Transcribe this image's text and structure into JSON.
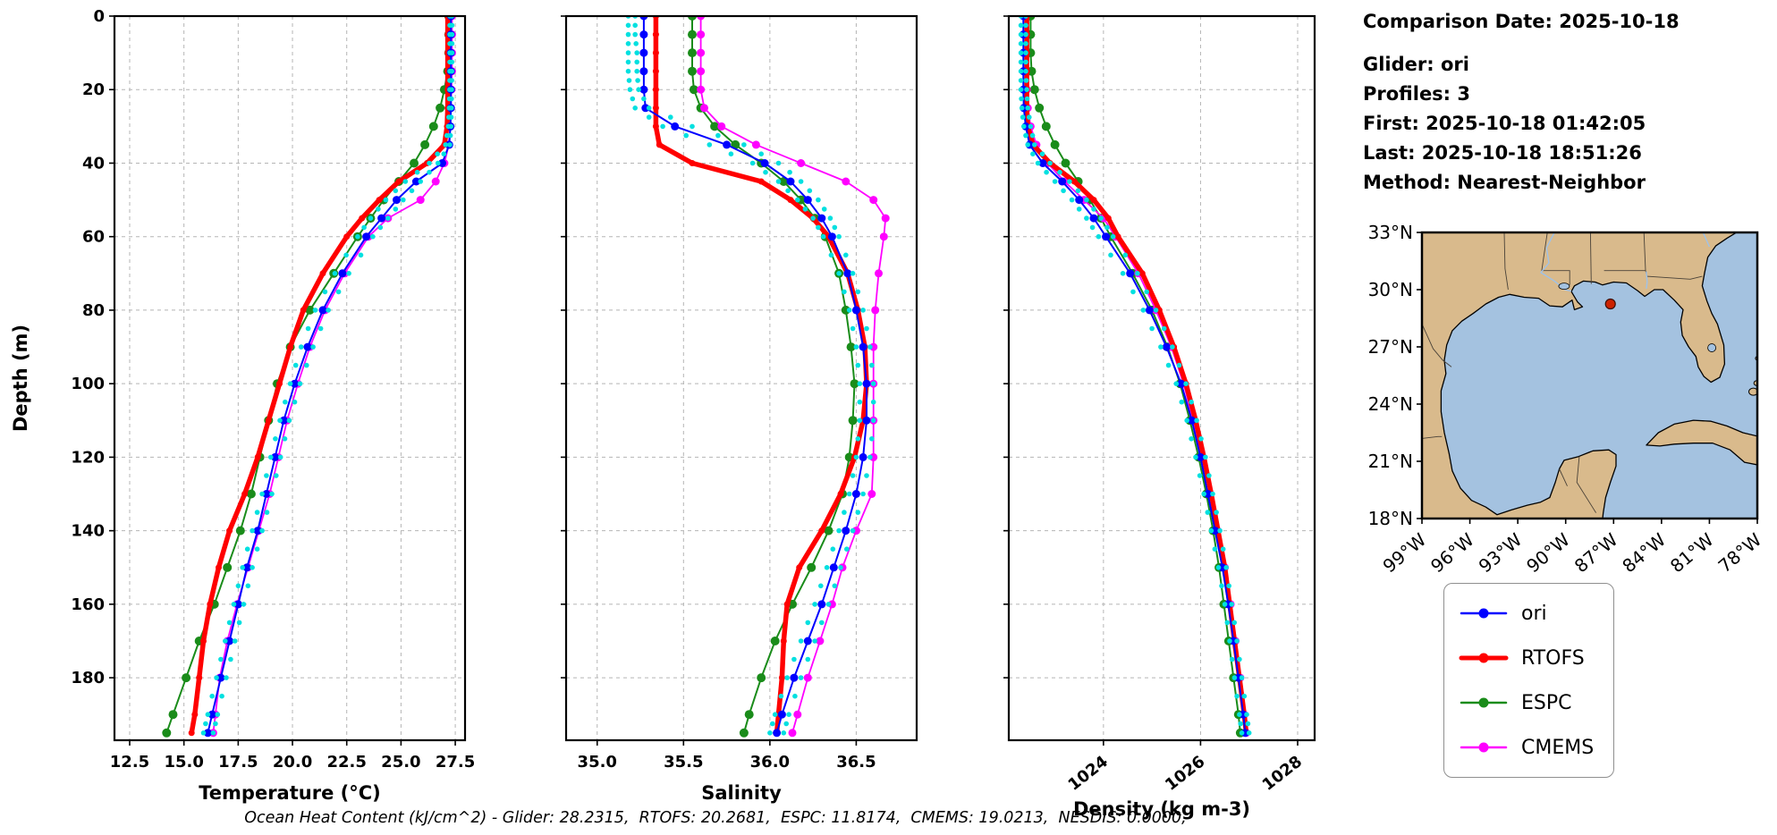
{
  "info_panel": {
    "comparison_date": "Comparison Date: 2025-10-18",
    "glider": "Glider: ori",
    "profiles": "Profiles: 3",
    "first": "First: 2025-10-18 01:42:05",
    "last": "Last: 2025-10-18 18:51:26",
    "method": "Method: Nearest-Neighbor"
  },
  "footer_note": "Ocean Heat Content (kJ/cm^2) - Glider: 28.2315,  RTOFS: 20.2681,  ESPC: 11.8174,  CMEMS: 19.0213,  NESDIS: 0.0000,",
  "legend": {
    "entries": [
      {
        "label": "ori",
        "color": "#0000ff",
        "lw": 2.5
      },
      {
        "label": "RTOFS",
        "color": "#ff0000",
        "lw": 5
      },
      {
        "label": "ESPC",
        "color": "#1a8c1a",
        "lw": 2.5
      },
      {
        "label": "CMEMS",
        "color": "#ff00ff",
        "lw": 2.5
      }
    ]
  },
  "depths": [
    0,
    5,
    10,
    15,
    20,
    25,
    30,
    35,
    40,
    45,
    50,
    55,
    60,
    70,
    80,
    90,
    100,
    110,
    120,
    130,
    140,
    150,
    160,
    170,
    180,
    190,
    195
  ],
  "chart_data": [
    {
      "type": "line",
      "xlabel": "Temperature (°C)",
      "ylabel": "Depth (m)",
      "xlim": [
        11.8,
        27.95
      ],
      "xticks": [
        12.5,
        15.0,
        17.5,
        20.0,
        22.5,
        25.0,
        27.5
      ],
      "xtick_labels": [
        "12.5",
        "15.0",
        "17.5",
        "20.0",
        "22.5",
        "25.0",
        "27.5"
      ],
      "rotate_xtick_labels": false,
      "ylim": [
        0,
        197
      ],
      "yticks": [
        0,
        20,
        40,
        60,
        80,
        100,
        120,
        140,
        160,
        180
      ],
      "grid": true,
      "series": [
        {
          "name": "ESPC",
          "color": "#1a8c1a",
          "lw": 2,
          "marker_r": 5,
          "style": "line-marker",
          "values": [
            27.2,
            27.2,
            27.2,
            27.15,
            27.0,
            26.8,
            26.5,
            26.1,
            25.6,
            24.9,
            24.2,
            23.6,
            23.0,
            21.9,
            20.8,
            19.9,
            19.3,
            18.9,
            18.5,
            18.1,
            17.6,
            17.0,
            16.4,
            15.7,
            15.1,
            14.5,
            14.2
          ]
        },
        {
          "name": "CMEMS",
          "color": "#ff00ff",
          "lw": 1.8,
          "marker_r": 4.5,
          "style": "line-marker",
          "values": [
            27.35,
            27.35,
            27.35,
            27.35,
            27.32,
            27.3,
            27.26,
            27.2,
            27.0,
            26.6,
            25.9,
            24.4,
            23.5,
            22.4,
            21.5,
            20.8,
            20.25,
            19.75,
            19.35,
            18.95,
            18.45,
            17.95,
            17.45,
            17.0,
            16.65,
            16.45,
            16.35
          ]
        },
        {
          "name": "RTOFS",
          "color": "#ff0000",
          "lw": 5.5,
          "marker_r": 3.5,
          "style": "line-marker",
          "values": [
            27.15,
            27.15,
            27.15,
            27.15,
            27.15,
            27.15,
            27.12,
            27.0,
            26.2,
            24.9,
            24.0,
            23.2,
            22.5,
            21.4,
            20.5,
            19.9,
            19.4,
            18.9,
            18.4,
            17.8,
            17.1,
            16.6,
            16.2,
            15.9,
            15.7,
            15.5,
            15.35
          ]
        },
        {
          "name": "ori",
          "color": "#0000ff",
          "lw": 2,
          "marker_r": 4.5,
          "style": "line-marker",
          "values": [
            27.3,
            27.3,
            27.3,
            27.3,
            27.3,
            27.3,
            27.28,
            27.22,
            26.9,
            25.7,
            24.8,
            24.1,
            23.4,
            22.3,
            21.4,
            20.7,
            20.1,
            19.6,
            19.2,
            18.8,
            18.4,
            17.9,
            17.5,
            17.1,
            16.7,
            16.3,
            16.1
          ]
        },
        {
          "name": "glider-obs-1",
          "color": "#00e0e0",
          "lw": 0,
          "marker_r": 2.8,
          "style": "scatter",
          "values": [
            27.25,
            27.25,
            27.25,
            27.25,
            27.24,
            27.22,
            27.18,
            27.05,
            26.3,
            25.2,
            24.3,
            23.6,
            23.0,
            21.95,
            21.05,
            20.4,
            19.9,
            19.42,
            19.0,
            18.6,
            18.15,
            17.7,
            17.3,
            16.9,
            16.5,
            16.1,
            15.9
          ]
        },
        {
          "name": "glider-obs-2",
          "color": "#00e0e0",
          "lw": 0,
          "marker_r": 2.8,
          "style": "scatter",
          "values": [
            27.35,
            27.35,
            27.35,
            27.34,
            27.33,
            27.32,
            27.3,
            27.25,
            26.7,
            25.9,
            25.1,
            24.4,
            23.7,
            22.6,
            21.65,
            20.95,
            20.35,
            19.85,
            19.45,
            19.05,
            18.6,
            18.15,
            17.75,
            17.35,
            16.95,
            16.55,
            16.35
          ]
        }
      ]
    },
    {
      "type": "line",
      "xlabel": "Salinity",
      "ylabel": "Depth (m)",
      "xlim": [
        34.82,
        36.85
      ],
      "xticks": [
        35.0,
        35.5,
        36.0,
        36.5
      ],
      "xtick_labels": [
        "35.0",
        "35.5",
        "36.0",
        "36.5"
      ],
      "rotate_xtick_labels": false,
      "ylim": [
        0,
        197
      ],
      "yticks": [
        0,
        20,
        40,
        60,
        80,
        100,
        120,
        140,
        160,
        180
      ],
      "grid": true,
      "series": [
        {
          "name": "ESPC",
          "color": "#1a8c1a",
          "lw": 2,
          "marker_r": 5,
          "style": "line-marker",
          "values": [
            35.55,
            35.55,
            35.55,
            35.55,
            35.56,
            35.6,
            35.68,
            35.8,
            35.95,
            36.08,
            36.18,
            36.26,
            36.32,
            36.4,
            36.44,
            36.47,
            36.49,
            36.48,
            36.46,
            36.42,
            36.34,
            36.24,
            36.13,
            36.03,
            35.95,
            35.88,
            35.85
          ]
        },
        {
          "name": "CMEMS",
          "color": "#ff00ff",
          "lw": 1.8,
          "marker_r": 4.5,
          "style": "line-marker",
          "values": [
            35.6,
            35.6,
            35.6,
            35.6,
            35.6,
            35.62,
            35.72,
            35.92,
            36.18,
            36.44,
            36.6,
            36.67,
            36.66,
            36.63,
            36.61,
            36.6,
            36.6,
            36.6,
            36.6,
            36.59,
            36.5,
            36.42,
            36.36,
            36.29,
            36.22,
            36.16,
            36.13
          ]
        },
        {
          "name": "RTOFS",
          "color": "#ff0000",
          "lw": 5.5,
          "marker_r": 3.5,
          "style": "line-marker",
          "values": [
            35.34,
            35.34,
            35.34,
            35.34,
            35.34,
            35.34,
            35.34,
            35.36,
            35.55,
            35.95,
            36.12,
            36.25,
            36.34,
            36.45,
            36.51,
            36.55,
            36.56,
            36.54,
            36.49,
            36.41,
            36.3,
            36.17,
            36.1,
            36.08,
            36.07,
            36.05,
            36.04
          ]
        },
        {
          "name": "ori",
          "color": "#0000ff",
          "lw": 2,
          "marker_r": 4.5,
          "style": "line-marker",
          "values": [
            35.27,
            35.27,
            35.27,
            35.27,
            35.27,
            35.28,
            35.45,
            35.75,
            35.97,
            36.12,
            36.22,
            36.3,
            36.36,
            36.45,
            36.5,
            36.54,
            36.56,
            36.56,
            36.54,
            36.5,
            36.44,
            36.37,
            36.3,
            36.22,
            36.14,
            36.07,
            36.04
          ]
        },
        {
          "name": "glider-obs-1",
          "color": "#00e0e0",
          "lw": 0,
          "marker_r": 2.8,
          "style": "scatter",
          "values": [
            35.18,
            35.18,
            35.18,
            35.18,
            35.19,
            35.22,
            35.38,
            35.65,
            35.9,
            36.05,
            36.16,
            36.25,
            36.31,
            36.4,
            36.46,
            36.5,
            36.52,
            36.52,
            36.5,
            36.46,
            36.4,
            36.33,
            36.26,
            36.18,
            36.1,
            36.03,
            36.0
          ]
        },
        {
          "name": "glider-obs-2",
          "color": "#00e0e0",
          "lw": 0,
          "marker_r": 2.8,
          "style": "scatter",
          "values": [
            35.22,
            35.22,
            35.23,
            35.23,
            35.24,
            35.3,
            35.55,
            35.85,
            36.05,
            36.18,
            36.28,
            36.35,
            36.4,
            36.48,
            36.54,
            36.58,
            36.6,
            36.6,
            36.58,
            36.54,
            36.48,
            36.41,
            36.34,
            36.26,
            36.18,
            36.11,
            36.08
          ]
        }
      ]
    },
    {
      "type": "line",
      "xlabel": "Density (kg m-3)",
      "ylabel": "Depth (m)",
      "xlim": [
        1022.05,
        1028.35
      ],
      "xticks": [
        1024,
        1026,
        1028
      ],
      "xtick_labels": [
        "1024",
        "1026",
        "1028"
      ],
      "rotate_xtick_labels": true,
      "ylim": [
        0,
        197
      ],
      "yticks": [
        0,
        20,
        40,
        60,
        80,
        100,
        120,
        140,
        160,
        180
      ],
      "grid": true,
      "series": [
        {
          "name": "ESPC",
          "color": "#1a8c1a",
          "lw": 2,
          "marker_r": 5,
          "style": "line-marker",
          "values": [
            1022.5,
            1022.5,
            1022.5,
            1022.52,
            1022.58,
            1022.68,
            1022.82,
            1023.0,
            1023.22,
            1023.48,
            1023.72,
            1023.95,
            1024.15,
            1024.6,
            1025.0,
            1025.32,
            1025.58,
            1025.78,
            1025.96,
            1026.12,
            1026.26,
            1026.38,
            1026.48,
            1026.58,
            1026.68,
            1026.78,
            1026.82
          ]
        },
        {
          "name": "CMEMS",
          "color": "#ff00ff",
          "lw": 1.8,
          "marker_r": 4.5,
          "style": "line-marker",
          "values": [
            1022.4,
            1022.4,
            1022.4,
            1022.4,
            1022.42,
            1022.44,
            1022.5,
            1022.62,
            1022.85,
            1023.2,
            1023.6,
            1024.0,
            1024.25,
            1024.72,
            1025.08,
            1025.4,
            1025.65,
            1025.85,
            1026.03,
            1026.2,
            1026.35,
            1026.5,
            1026.62,
            1026.72,
            1026.82,
            1026.9,
            1026.94
          ]
        },
        {
          "name": "RTOFS",
          "color": "#ff0000",
          "lw": 5.5,
          "marker_r": 3.5,
          "style": "line-marker",
          "values": [
            1022.42,
            1022.42,
            1022.42,
            1022.42,
            1022.42,
            1022.42,
            1022.44,
            1022.55,
            1022.9,
            1023.4,
            1023.8,
            1024.1,
            1024.3,
            1024.8,
            1025.15,
            1025.45,
            1025.7,
            1025.9,
            1026.07,
            1026.22,
            1026.36,
            1026.5,
            1026.6,
            1026.7,
            1026.8,
            1026.9,
            1026.94
          ]
        },
        {
          "name": "ori",
          "color": "#0000ff",
          "lw": 2,
          "marker_r": 4.5,
          "style": "line-marker",
          "values": [
            1022.35,
            1022.35,
            1022.35,
            1022.35,
            1022.35,
            1022.36,
            1022.4,
            1022.48,
            1022.75,
            1023.15,
            1023.5,
            1023.8,
            1024.05,
            1024.55,
            1024.95,
            1025.3,
            1025.6,
            1025.82,
            1026.0,
            1026.15,
            1026.3,
            1026.45,
            1026.57,
            1026.68,
            1026.78,
            1026.88,
            1026.92
          ]
        },
        {
          "name": "glider-obs-1",
          "color": "#00e0e0",
          "lw": 0,
          "marker_r": 2.8,
          "style": "scatter",
          "values": [
            1022.3,
            1022.3,
            1022.3,
            1022.3,
            1022.3,
            1022.32,
            1022.36,
            1022.44,
            1022.65,
            1023.0,
            1023.35,
            1023.65,
            1023.9,
            1024.4,
            1024.82,
            1025.18,
            1025.5,
            1025.72,
            1025.9,
            1026.07,
            1026.22,
            1026.37,
            1026.5,
            1026.6,
            1026.7,
            1026.8,
            1026.85
          ]
        },
        {
          "name": "glider-obs-2",
          "color": "#00e0e0",
          "lw": 0,
          "marker_r": 2.8,
          "style": "scatter",
          "values": [
            1022.4,
            1022.4,
            1022.4,
            1022.4,
            1022.42,
            1022.44,
            1022.5,
            1022.58,
            1022.9,
            1023.3,
            1023.65,
            1023.95,
            1024.2,
            1024.7,
            1025.08,
            1025.42,
            1025.7,
            1025.92,
            1026.1,
            1026.25,
            1026.4,
            1026.53,
            1026.64,
            1026.75,
            1026.85,
            1026.95,
            1027.0
          ]
        }
      ]
    }
  ],
  "map": {
    "extent": {
      "lon_min": -99,
      "lon_max": -78,
      "lat_min": 18,
      "lat_max": 33
    },
    "lat_tick_values": [
      33,
      30,
      27,
      24,
      21,
      18
    ],
    "lat_tick_labels": [
      "33°N",
      "30°N",
      "27°N",
      "24°N",
      "21°N",
      "18°N"
    ],
    "lon_tick_values": [
      -99,
      -96,
      -93,
      -90,
      -87,
      -84,
      -81,
      -78
    ],
    "lon_tick_labels": [
      "99°W",
      "96°W",
      "93°W",
      "90°W",
      "87°W",
      "84°W",
      "81°W",
      "78°W"
    ],
    "marker": {
      "lon": -87.2,
      "lat": 29.25,
      "color": "#cc2200"
    },
    "land_color": "#d9ba8c",
    "ocean_color": "#a4c2e0"
  }
}
